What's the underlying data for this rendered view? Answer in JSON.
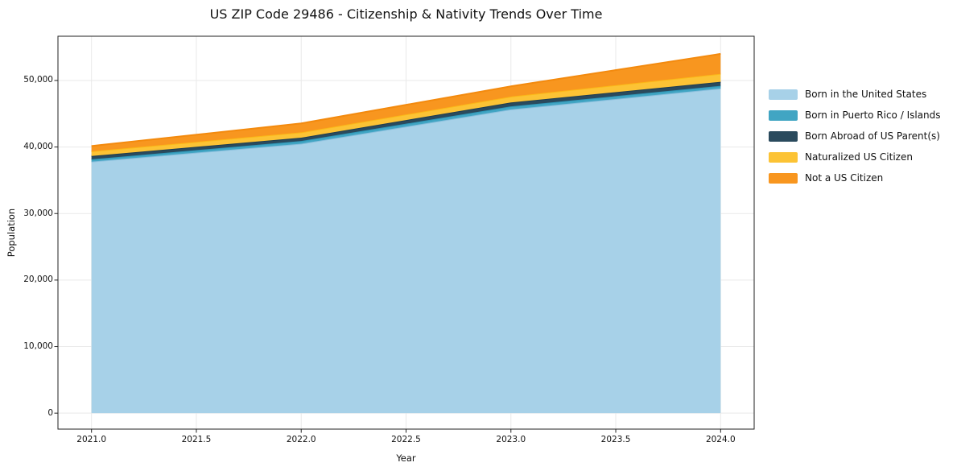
{
  "title": "US ZIP Code 29486 - Citizenship & Nativity Trends Over Time",
  "chart_data": {
    "type": "area",
    "stacked": true,
    "title": "US ZIP Code 29486 - Citizenship & Nativity Trends Over Time",
    "xlabel": "Year",
    "ylabel": "Population",
    "x": [
      2021,
      2022,
      2023,
      2024
    ],
    "x_tick_values": [
      2021.0,
      2021.5,
      2022.0,
      2022.5,
      2023.0,
      2023.5,
      2024.0
    ],
    "x_tick_labels": [
      "2021.0",
      "2021.5",
      "2022.0",
      "2022.5",
      "2023.0",
      "2023.5",
      "2024.0"
    ],
    "y_tick_values": [
      0,
      10000,
      20000,
      30000,
      40000,
      50000
    ],
    "y_tick_labels": [
      "0",
      "10,000",
      "20,000",
      "30,000",
      "40,000",
      "50,000"
    ],
    "xlim": [
      2020.84,
      2024.16
    ],
    "ylim": [
      -2400,
      56650
    ],
    "grid": true,
    "legend_position": "right",
    "series": [
      {
        "name": "Born in the United States",
        "color": "#a7d1e8",
        "edge_color": "#8abfdd",
        "values": [
          37800,
          40500,
          45650,
          48800
        ]
      },
      {
        "name": "Born in Puerto Rico / Islands",
        "color": "#41a5c3",
        "edge_color": "#2e97b8",
        "values": [
          350,
          400,
          450,
          400
        ]
      },
      {
        "name": "Born Abroad of US Parent(s)",
        "color": "#2a4a5d",
        "edge_color": "#1f3d50",
        "values": [
          500,
          500,
          600,
          600
        ]
      },
      {
        "name": "Naturalized US Citizen",
        "color": "#fcc335",
        "edge_color": "#fbb817",
        "values": [
          700,
          800,
          880,
          1200
        ]
      },
      {
        "name": "Not a US Citizen",
        "color": "#f8961f",
        "edge_color": "#f38a0e",
        "values": [
          800,
          1350,
          1540,
          3000
        ]
      }
    ],
    "totals_by_year": [
      40150,
      43550,
      49120,
      54000
    ],
    "grid_color": "#e9e9e9",
    "spine_color": "#222222"
  }
}
